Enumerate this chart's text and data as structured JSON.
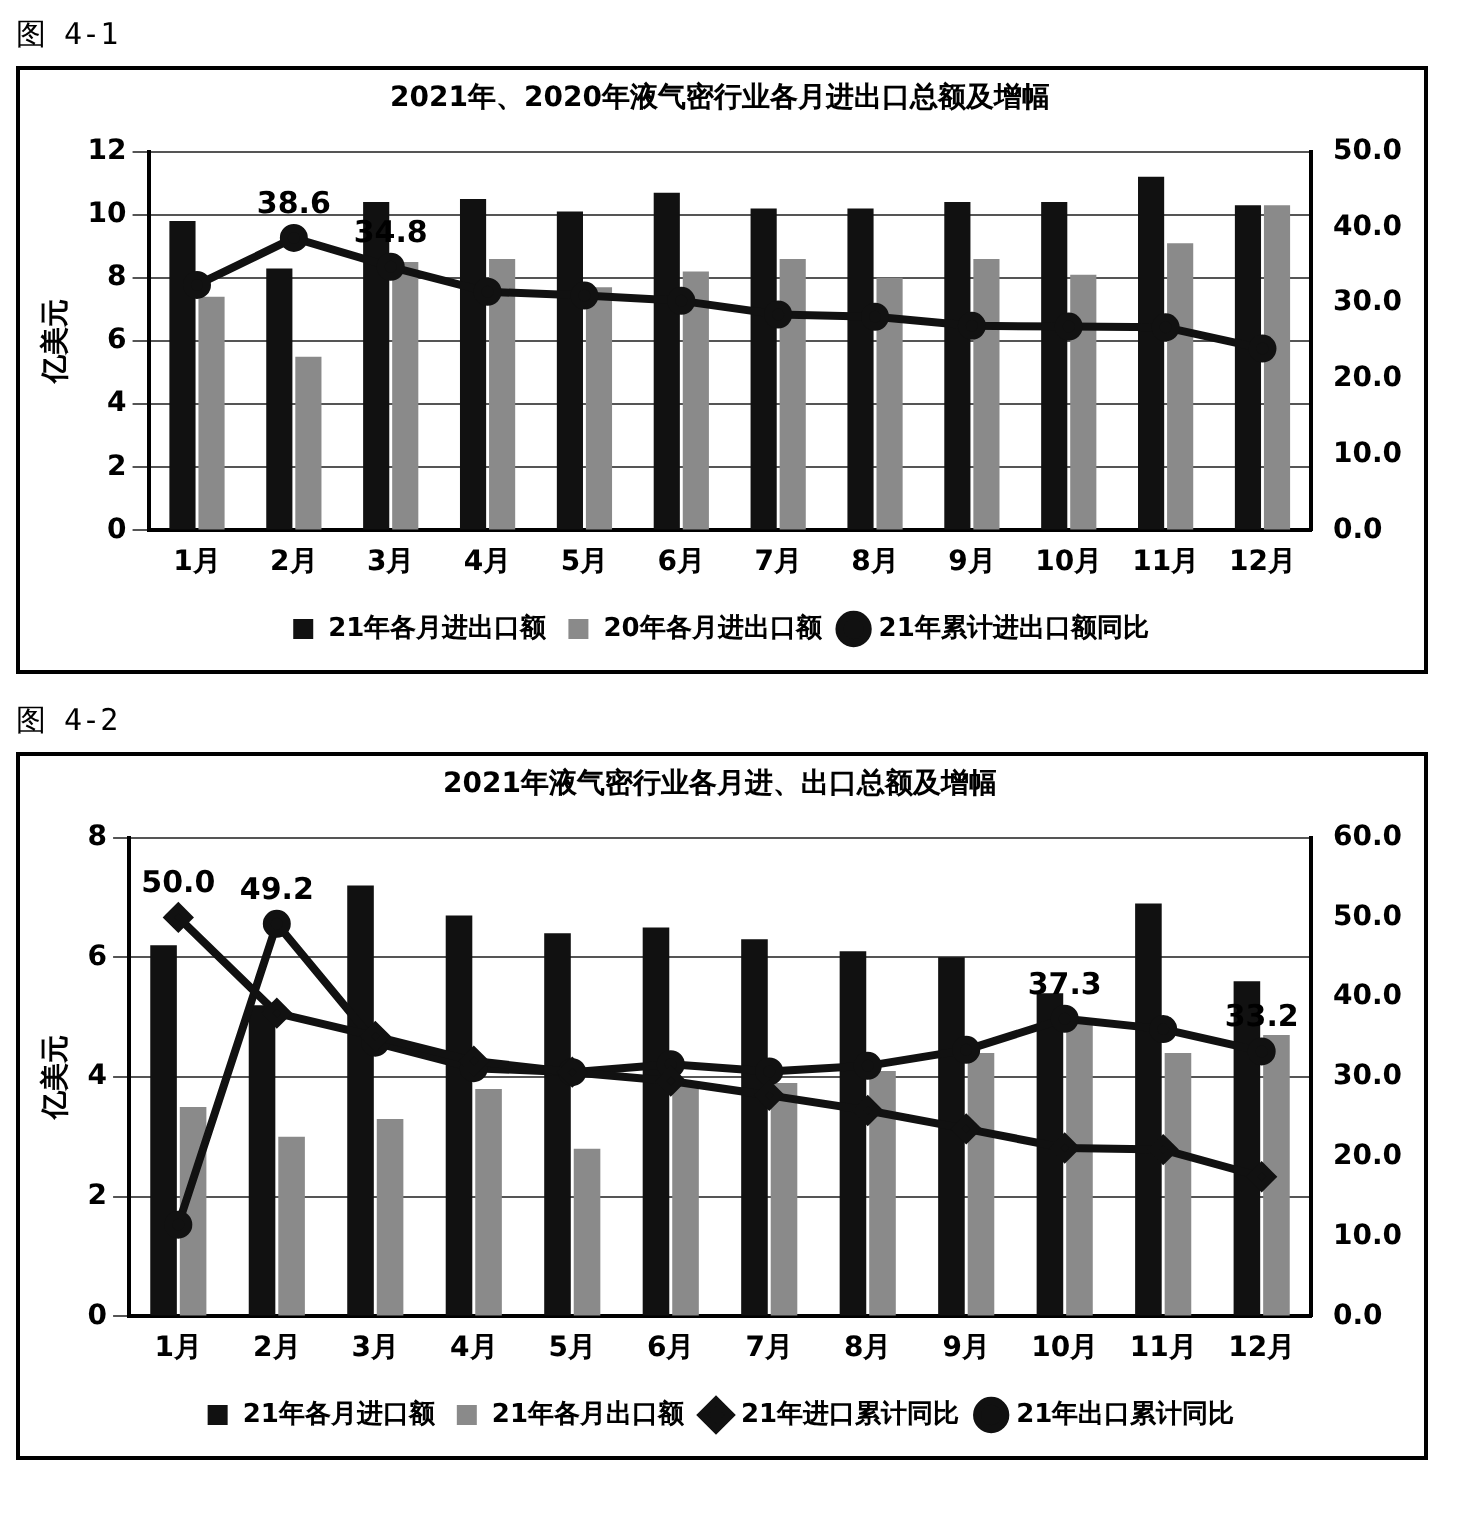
{
  "chart_data": [
    {
      "type": "bar",
      "title": "2021年、2020年液气密行业各月进出口总额及增幅",
      "annotations": [
        "图 4-1"
      ],
      "ylabel": "亿美元",
      "categories": [
        "1月",
        "2月",
        "3月",
        "4月",
        "5月",
        "6月",
        "7月",
        "8月",
        "9月",
        "10月",
        "11月",
        "12月"
      ],
      "series": [
        {
          "name": "21年各月进出口额",
          "color": "#111111",
          "values": [
            9.8,
            8.3,
            10.4,
            10.5,
            10.1,
            10.7,
            10.2,
            10.2,
            10.4,
            10.4,
            11.2,
            10.3
          ]
        },
        {
          "name": "20年各月进出口额",
          "color": "#8a8a8a",
          "values": [
            7.4,
            5.5,
            8.5,
            8.6,
            7.7,
            8.2,
            8.6,
            8.0,
            8.6,
            8.1,
            9.1,
            10.3
          ]
        },
        {
          "name": "21年累计进出口额同比",
          "type": "line",
          "axis": "y2",
          "marker": "circle",
          "color": "#111111",
          "values": [
            32.4,
            38.6,
            34.8,
            31.5,
            31.0,
            30.3,
            28.5,
            28.2,
            27.0,
            26.9,
            26.8,
            24.0
          ],
          "value_labels": [
            null,
            "38.6",
            "34.8",
            null,
            null,
            null,
            null,
            null,
            null,
            null,
            null,
            null
          ]
        }
      ],
      "ylim": [
        0,
        12
      ],
      "yticks": [
        0,
        2,
        4,
        6,
        8,
        10,
        12
      ],
      "y2lim": [
        0,
        50
      ],
      "y2ticks": [
        {
          "value": 0,
          "label": "0.0"
        },
        {
          "value": 10,
          "label": "10.0"
        },
        {
          "value": 20,
          "label": "20.0"
        },
        {
          "value": 30,
          "label": "30.0"
        },
        {
          "value": 40,
          "label": "40.0"
        },
        {
          "value": 50,
          "label": "50.0"
        }
      ],
      "grid": "y",
      "legend": "bottom"
    },
    {
      "type": "bar",
      "title": "2021年液气密行业各月进、出口总额及增幅",
      "annotations": [
        "图 4-2"
      ],
      "ylabel": "亿美元",
      "categories": [
        "1月",
        "2月",
        "3月",
        "4月",
        "5月",
        "6月",
        "7月",
        "8月",
        "9月",
        "10月",
        "11月",
        "12月"
      ],
      "series": [
        {
          "name": "21年各月进口额",
          "color": "#111111",
          "values": [
            6.2,
            5.2,
            7.2,
            6.7,
            6.4,
            6.5,
            6.3,
            6.1,
            6.0,
            5.4,
            6.9,
            5.6
          ]
        },
        {
          "name": "21年各月出口额",
          "color": "#8a8a8a",
          "values": [
            3.5,
            3.0,
            3.3,
            3.8,
            2.8,
            3.9,
            3.9,
            4.1,
            4.4,
            4.9,
            4.4,
            4.7
          ]
        },
        {
          "name": "21年进口累计同比",
          "type": "line",
          "axis": "y2",
          "marker": "diamond",
          "color": "#111111",
          "values": [
            50.0,
            38.0,
            35.1,
            32.0,
            30.6,
            29.5,
            27.7,
            25.8,
            23.5,
            21.1,
            20.9,
            17.5
          ],
          "value_labels": [
            "50.0",
            null,
            null,
            null,
            null,
            null,
            null,
            null,
            null,
            null,
            null,
            null
          ]
        },
        {
          "name": "21年出口累计同比",
          "type": "line",
          "axis": "y2",
          "marker": "circle",
          "color": "#111111",
          "values": [
            11.5,
            49.2,
            34.3,
            31.1,
            30.6,
            31.6,
            30.7,
            31.4,
            33.4,
            37.3,
            36.0,
            33.2
          ],
          "value_labels": [
            null,
            "49.2",
            null,
            null,
            null,
            null,
            null,
            null,
            null,
            "37.3",
            null,
            "33.2"
          ]
        }
      ],
      "ylim": [
        0,
        8
      ],
      "yticks": [
        0,
        2,
        4,
        6,
        8
      ],
      "y2lim": [
        0,
        60
      ],
      "y2ticks": [
        {
          "value": 0,
          "label": "0.0"
        },
        {
          "value": 10,
          "label": "10.0"
        },
        {
          "value": 20,
          "label": "20.0"
        },
        {
          "value": 30,
          "label": "30.0"
        },
        {
          "value": 40,
          "label": "40.0"
        },
        {
          "value": 50,
          "label": "50.0"
        },
        {
          "value": 60,
          "label": "60.0"
        }
      ],
      "grid": "y",
      "legend": "bottom"
    }
  ]
}
